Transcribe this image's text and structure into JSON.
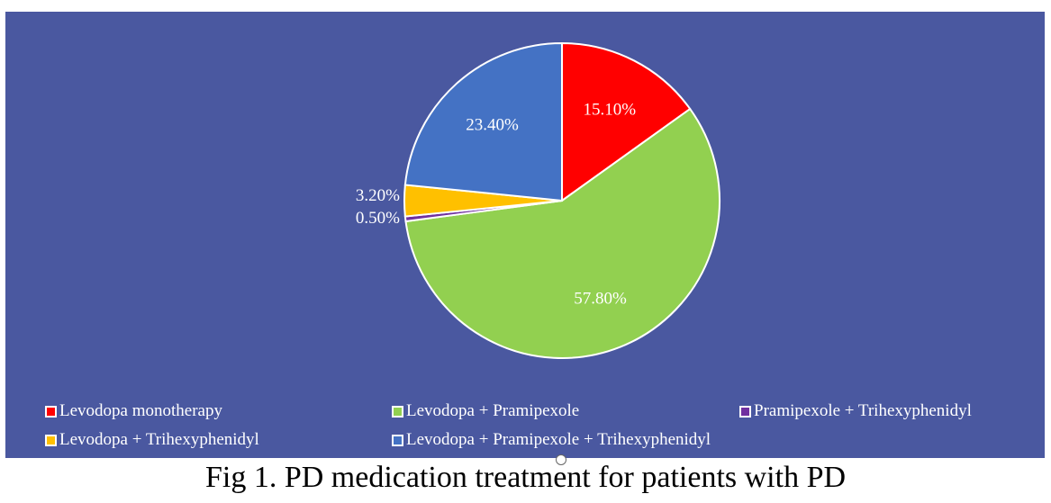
{
  "chart_data": {
    "type": "pie",
    "title": "",
    "start_angle_deg": 0,
    "direction": "clockwise",
    "slices": [
      {
        "label": "Levodopa monotherapy",
        "value": 15.1,
        "display": "15.10%",
        "color": "#ff0000"
      },
      {
        "label": "Levodopa + Pramipexole",
        "value": 57.8,
        "display": "57.80%",
        "color": "#92d050"
      },
      {
        "label": "Pramipexole + Trihexyphenidyl",
        "value": 0.5,
        "display": "0.50%",
        "color": "#7030a0"
      },
      {
        "label": "Levodopa + Trihexyphenidyl",
        "value": 3.2,
        "display": "3.20%",
        "color": "#ffc000"
      },
      {
        "label": "Levodopa + Pramipexole + Trihexyphenidyl",
        "value": 23.4,
        "display": "23.40%",
        "color": "#4472c4"
      }
    ],
    "legend": {
      "placement": "bottom",
      "entries": [
        "Levodopa monotherapy",
        "Levodopa + Pramipexole",
        "Pramipexole + Trihexyphenidyl",
        "Levodopa + Trihexyphenidyl",
        "Levodopa + Pramipexole + Trihexyphenidyl"
      ]
    },
    "background_color": "#4a58a0"
  },
  "caption": "Fig 1. PD medication treatment for patients with PD"
}
